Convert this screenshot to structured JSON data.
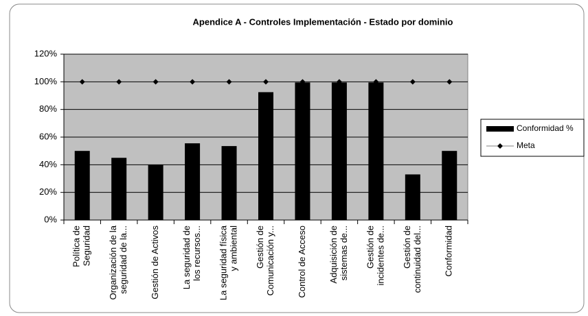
{
  "chart_data": {
    "type": "bar",
    "title": "Apendice A - Controles Implementación - Estado por dominio",
    "categories": [
      [
        "Política de",
        "Seguridad"
      ],
      [
        "Organización de la",
        "seguridad de la..."
      ],
      [
        "Gestión de Activos"
      ],
      [
        "La seguridad de",
        "los recursos..."
      ],
      [
        "La seguridad física",
        "y ambiental"
      ],
      [
        "Gestión de",
        "Comunicación y..."
      ],
      [
        "Control de Acceso"
      ],
      [
        "Adquisición de",
        "sistemas de..."
      ],
      [
        "Gestión de",
        "incidentes de..."
      ],
      [
        "Gestión de",
        "continuidad del..."
      ],
      [
        "Conformidad"
      ]
    ],
    "series": [
      {
        "name": "Conformidad %",
        "type": "bar",
        "color": "#000000",
        "values": [
          50,
          45,
          40,
          55.5,
          53.5,
          92.5,
          99.5,
          99.5,
          99.5,
          33,
          50
        ]
      },
      {
        "name": "Meta",
        "type": "line",
        "color": "#000000",
        "values": [
          100,
          100,
          100,
          100,
          100,
          100,
          100,
          100,
          100,
          100,
          100
        ]
      }
    ],
    "ylim": [
      0,
      120
    ],
    "yticks": [
      {
        "value": 0,
        "label": "0%"
      },
      {
        "value": 20,
        "label": "20%"
      },
      {
        "value": 40,
        "label": "40%"
      },
      {
        "value": 60,
        "label": "60%"
      },
      {
        "value": 80,
        "label": "80%"
      },
      {
        "value": 100,
        "label": "100%"
      },
      {
        "value": 120,
        "label": "120%"
      }
    ],
    "grid": true,
    "legend": "right"
  }
}
